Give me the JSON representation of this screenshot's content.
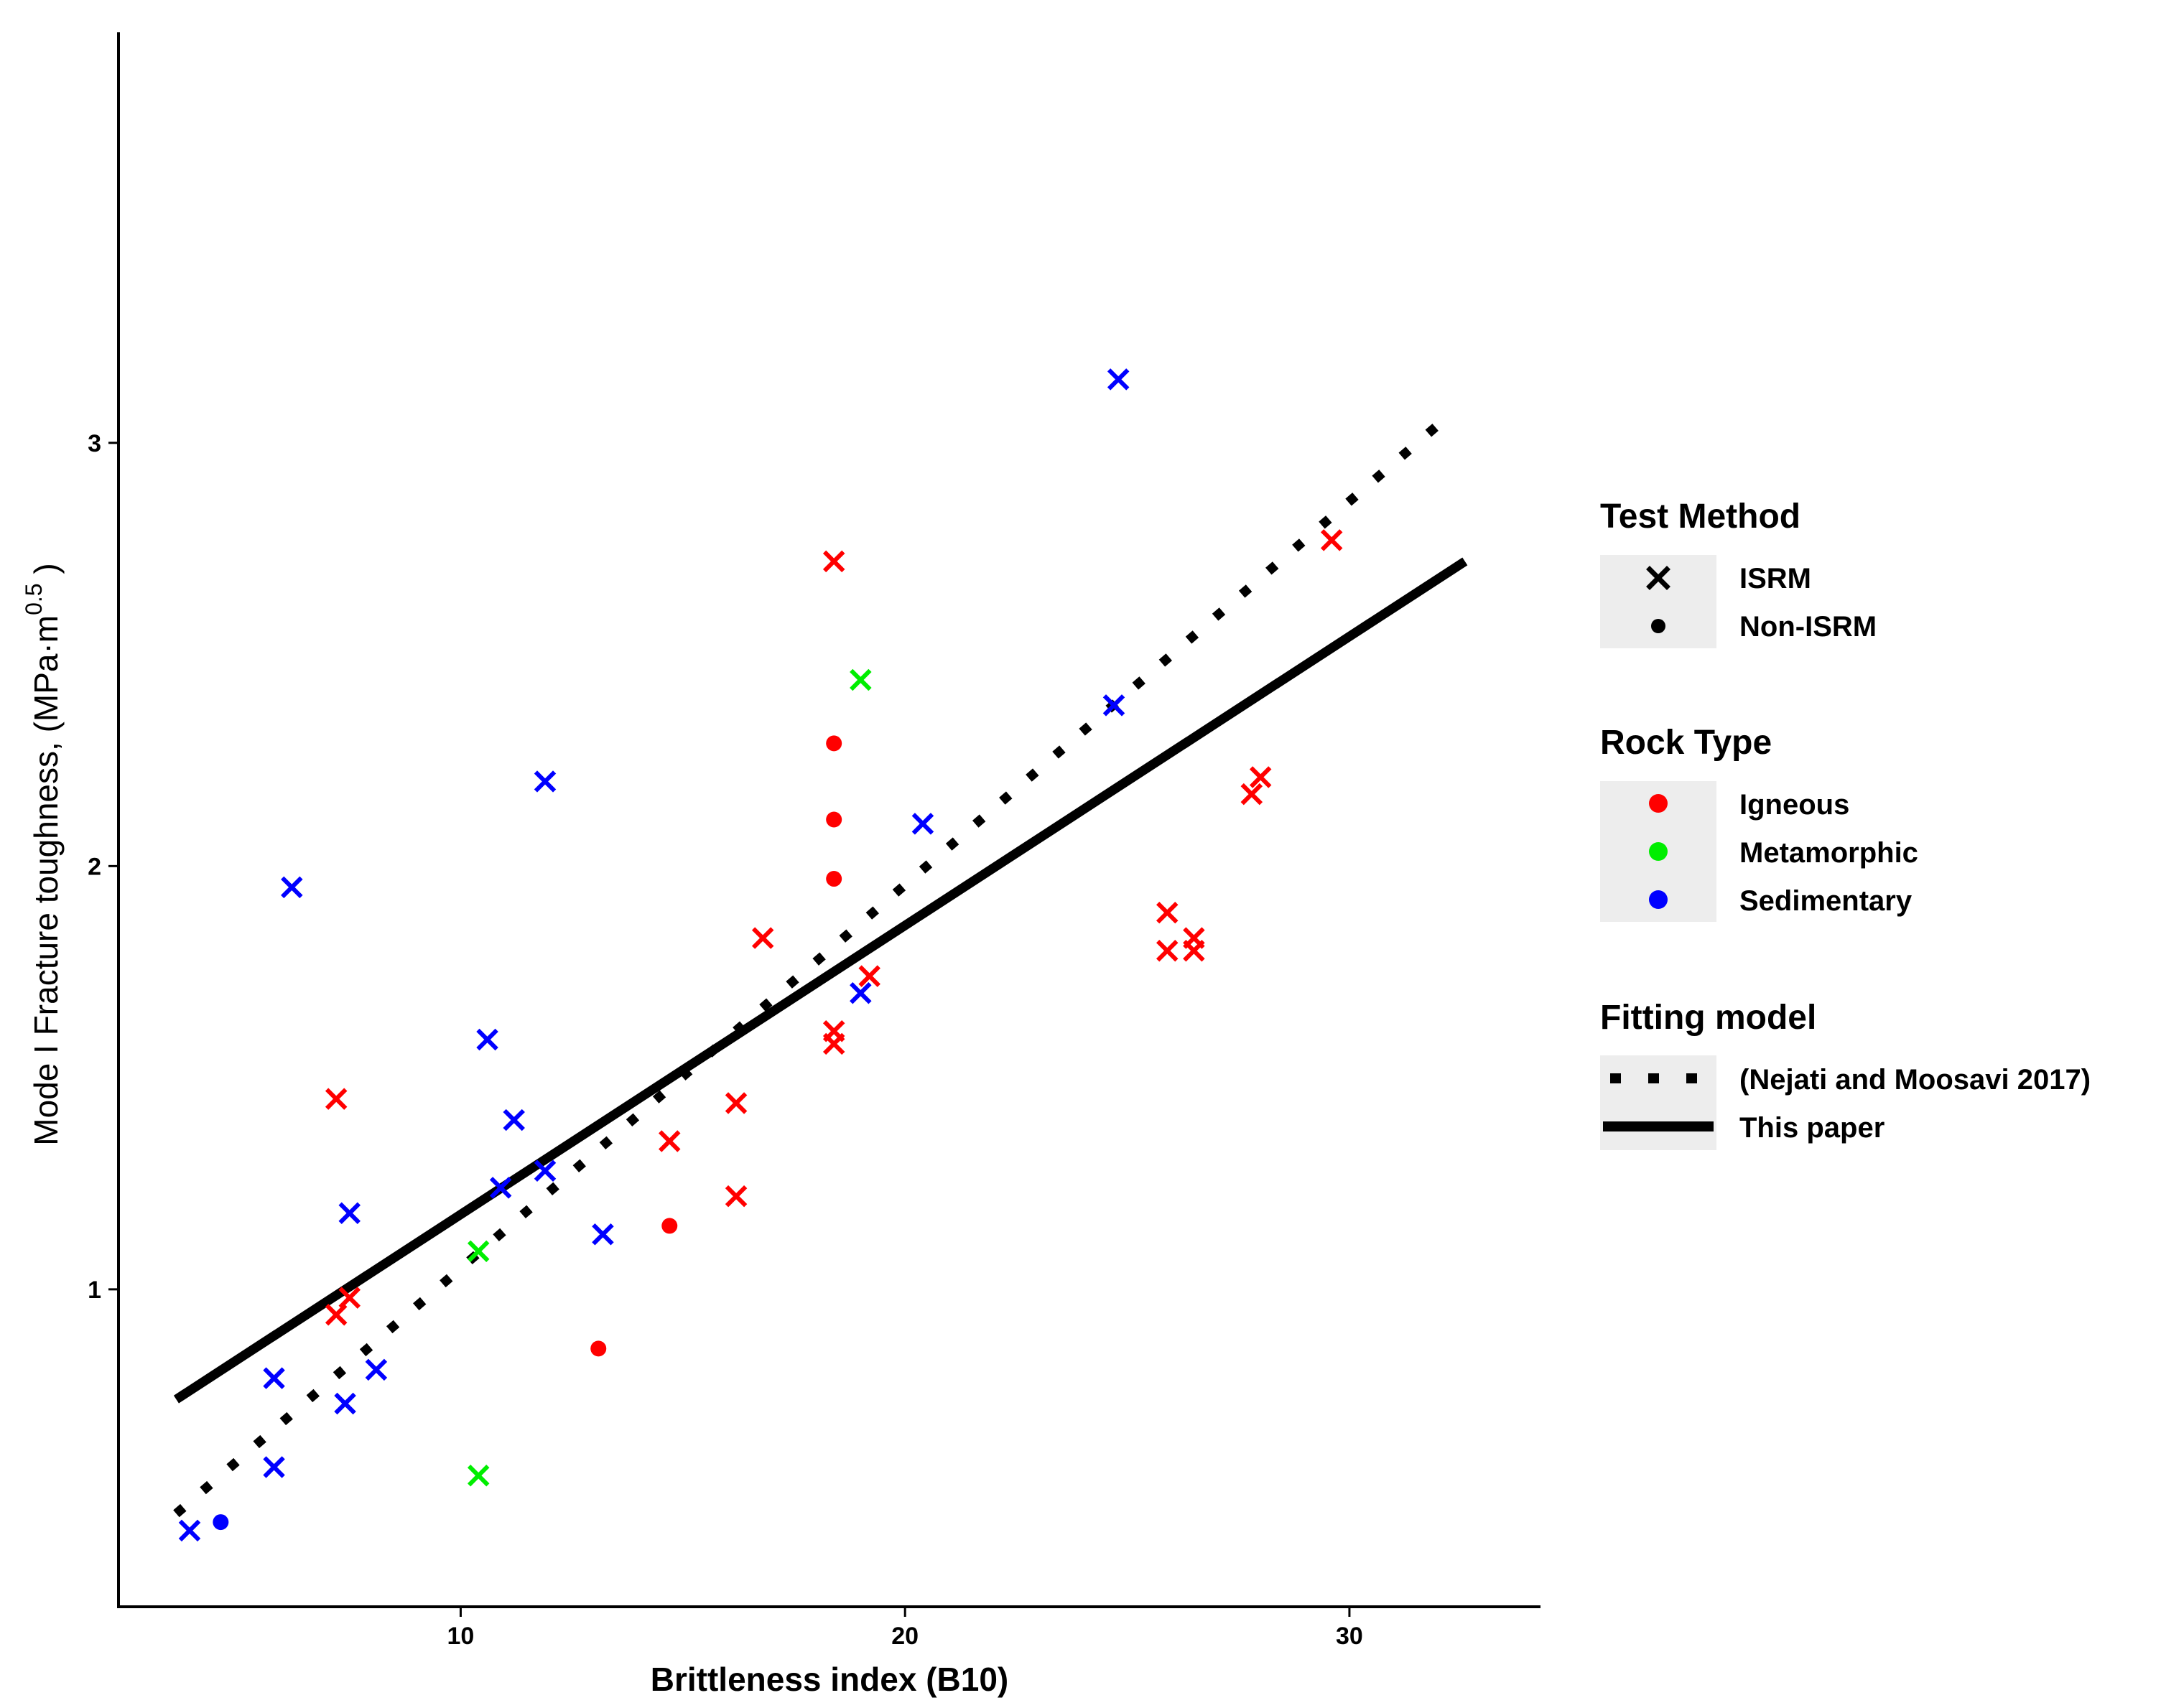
{
  "chart_data": {
    "type": "scatter",
    "title": "",
    "xlabel": "Brittleness index (B10)",
    "ylabel_main": "Mode I Fracture toughness, (MPa·m",
    "ylabel_sup": "0.5",
    "ylabel_end": " )",
    "xlim": [
      2.3,
      34.3
    ],
    "ylim": [
      0.25,
      3.97
    ],
    "xticks": [
      10,
      20,
      30
    ],
    "yticks": [
      1,
      2,
      3
    ],
    "colors": {
      "Igneous": "#ff0000",
      "Metamorphic": "#00ee00",
      "Sedimentary": "#0000ff",
      "line": "#000000"
    },
    "points": [
      {
        "x": 3.9,
        "y": 0.43,
        "method": "ISRM",
        "rock": "Sedimentary"
      },
      {
        "x": 4.6,
        "y": 0.45,
        "method": "Non-ISRM",
        "rock": "Sedimentary"
      },
      {
        "x": 5.8,
        "y": 0.79,
        "method": "ISRM",
        "rock": "Sedimentary"
      },
      {
        "x": 5.8,
        "y": 0.58,
        "method": "ISRM",
        "rock": "Sedimentary"
      },
      {
        "x": 6.2,
        "y": 1.95,
        "method": "ISRM",
        "rock": "Sedimentary"
      },
      {
        "x": 7.2,
        "y": 1.45,
        "method": "ISRM",
        "rock": "Igneous"
      },
      {
        "x": 7.2,
        "y": 0.94,
        "method": "ISRM",
        "rock": "Igneous"
      },
      {
        "x": 7.5,
        "y": 0.98,
        "method": "ISRM",
        "rock": "Igneous"
      },
      {
        "x": 7.4,
        "y": 0.73,
        "method": "ISRM",
        "rock": "Sedimentary"
      },
      {
        "x": 7.5,
        "y": 1.18,
        "method": "ISRM",
        "rock": "Sedimentary"
      },
      {
        "x": 8.1,
        "y": 0.81,
        "method": "ISRM",
        "rock": "Sedimentary"
      },
      {
        "x": 10.4,
        "y": 1.09,
        "method": "ISRM",
        "rock": "Metamorphic"
      },
      {
        "x": 10.4,
        "y": 0.56,
        "method": "ISRM",
        "rock": "Metamorphic"
      },
      {
        "x": 10.6,
        "y": 1.59,
        "method": "ISRM",
        "rock": "Sedimentary"
      },
      {
        "x": 10.9,
        "y": 1.24,
        "method": "ISRM",
        "rock": "Sedimentary"
      },
      {
        "x": 11.2,
        "y": 1.4,
        "method": "ISRM",
        "rock": "Sedimentary"
      },
      {
        "x": 11.9,
        "y": 2.2,
        "method": "ISRM",
        "rock": "Sedimentary"
      },
      {
        "x": 11.9,
        "y": 1.28,
        "method": "ISRM",
        "rock": "Sedimentary"
      },
      {
        "x": 13.1,
        "y": 0.86,
        "method": "Non-ISRM",
        "rock": "Igneous"
      },
      {
        "x": 13.2,
        "y": 1.13,
        "method": "ISRM",
        "rock": "Sedimentary"
      },
      {
        "x": 14.7,
        "y": 1.35,
        "method": "ISRM",
        "rock": "Igneous"
      },
      {
        "x": 14.7,
        "y": 1.15,
        "method": "Non-ISRM",
        "rock": "Igneous"
      },
      {
        "x": 16.2,
        "y": 1.44,
        "method": "ISRM",
        "rock": "Igneous"
      },
      {
        "x": 16.2,
        "y": 1.22,
        "method": "ISRM",
        "rock": "Igneous"
      },
      {
        "x": 16.8,
        "y": 1.83,
        "method": "ISRM",
        "rock": "Igneous"
      },
      {
        "x": 18.4,
        "y": 2.72,
        "method": "ISRM",
        "rock": "Igneous"
      },
      {
        "x": 18.4,
        "y": 2.29,
        "method": "Non-ISRM",
        "rock": "Igneous"
      },
      {
        "x": 18.4,
        "y": 2.11,
        "method": "Non-ISRM",
        "rock": "Igneous"
      },
      {
        "x": 18.4,
        "y": 1.97,
        "method": "Non-ISRM",
        "rock": "Igneous"
      },
      {
        "x": 18.4,
        "y": 1.61,
        "method": "ISRM",
        "rock": "Igneous"
      },
      {
        "x": 18.4,
        "y": 1.58,
        "method": "ISRM",
        "rock": "Igneous"
      },
      {
        "x": 19.0,
        "y": 2.44,
        "method": "ISRM",
        "rock": "Metamorphic"
      },
      {
        "x": 19.0,
        "y": 1.7,
        "method": "ISRM",
        "rock": "Sedimentary"
      },
      {
        "x": 19.2,
        "y": 1.74,
        "method": "ISRM",
        "rock": "Igneous"
      },
      {
        "x": 20.4,
        "y": 2.1,
        "method": "ISRM",
        "rock": "Sedimentary"
      },
      {
        "x": 24.7,
        "y": 2.38,
        "method": "ISRM",
        "rock": "Sedimentary"
      },
      {
        "x": 24.8,
        "y": 3.15,
        "method": "ISRM",
        "rock": "Sedimentary"
      },
      {
        "x": 25.9,
        "y": 1.89,
        "method": "ISRM",
        "rock": "Igneous"
      },
      {
        "x": 25.9,
        "y": 1.8,
        "method": "ISRM",
        "rock": "Igneous"
      },
      {
        "x": 26.5,
        "y": 1.83,
        "method": "ISRM",
        "rock": "Igneous"
      },
      {
        "x": 26.5,
        "y": 1.8,
        "method": "ISRM",
        "rock": "Igneous"
      },
      {
        "x": 27.8,
        "y": 2.17,
        "method": "ISRM",
        "rock": "Igneous"
      },
      {
        "x": 28.0,
        "y": 2.21,
        "method": "ISRM",
        "rock": "Igneous"
      },
      {
        "x": 29.6,
        "y": 2.77,
        "method": "ISRM",
        "rock": "Igneous"
      }
    ],
    "lines": [
      {
        "name": "(Nejati and Moosavi 2017)",
        "style": "dotted",
        "x": [
          3.6,
          32.3
        ],
        "y": [
          0.47,
          3.07
        ]
      },
      {
        "name": "This paper",
        "style": "solid",
        "x": [
          3.6,
          32.6
        ],
        "y": [
          0.74,
          2.72
        ]
      }
    ],
    "legend": {
      "placement": "right",
      "groups": [
        {
          "title": "Test Method",
          "items": [
            {
              "label": "ISRM",
              "shape": "cross"
            },
            {
              "label": "Non-ISRM",
              "shape": "dot"
            }
          ]
        },
        {
          "title": "Rock Type",
          "items": [
            {
              "label": "Igneous",
              "color": "#ff0000"
            },
            {
              "label": "Metamorphic",
              "color": "#00ee00"
            },
            {
              "label": "Sedimentary",
              "color": "#0000ff"
            }
          ]
        },
        {
          "title": "Fitting model",
          "items": [
            {
              "label": "(Nejati and Moosavi 2017)",
              "style": "dotted"
            },
            {
              "label": "This paper",
              "style": "solid"
            }
          ]
        }
      ]
    }
  }
}
